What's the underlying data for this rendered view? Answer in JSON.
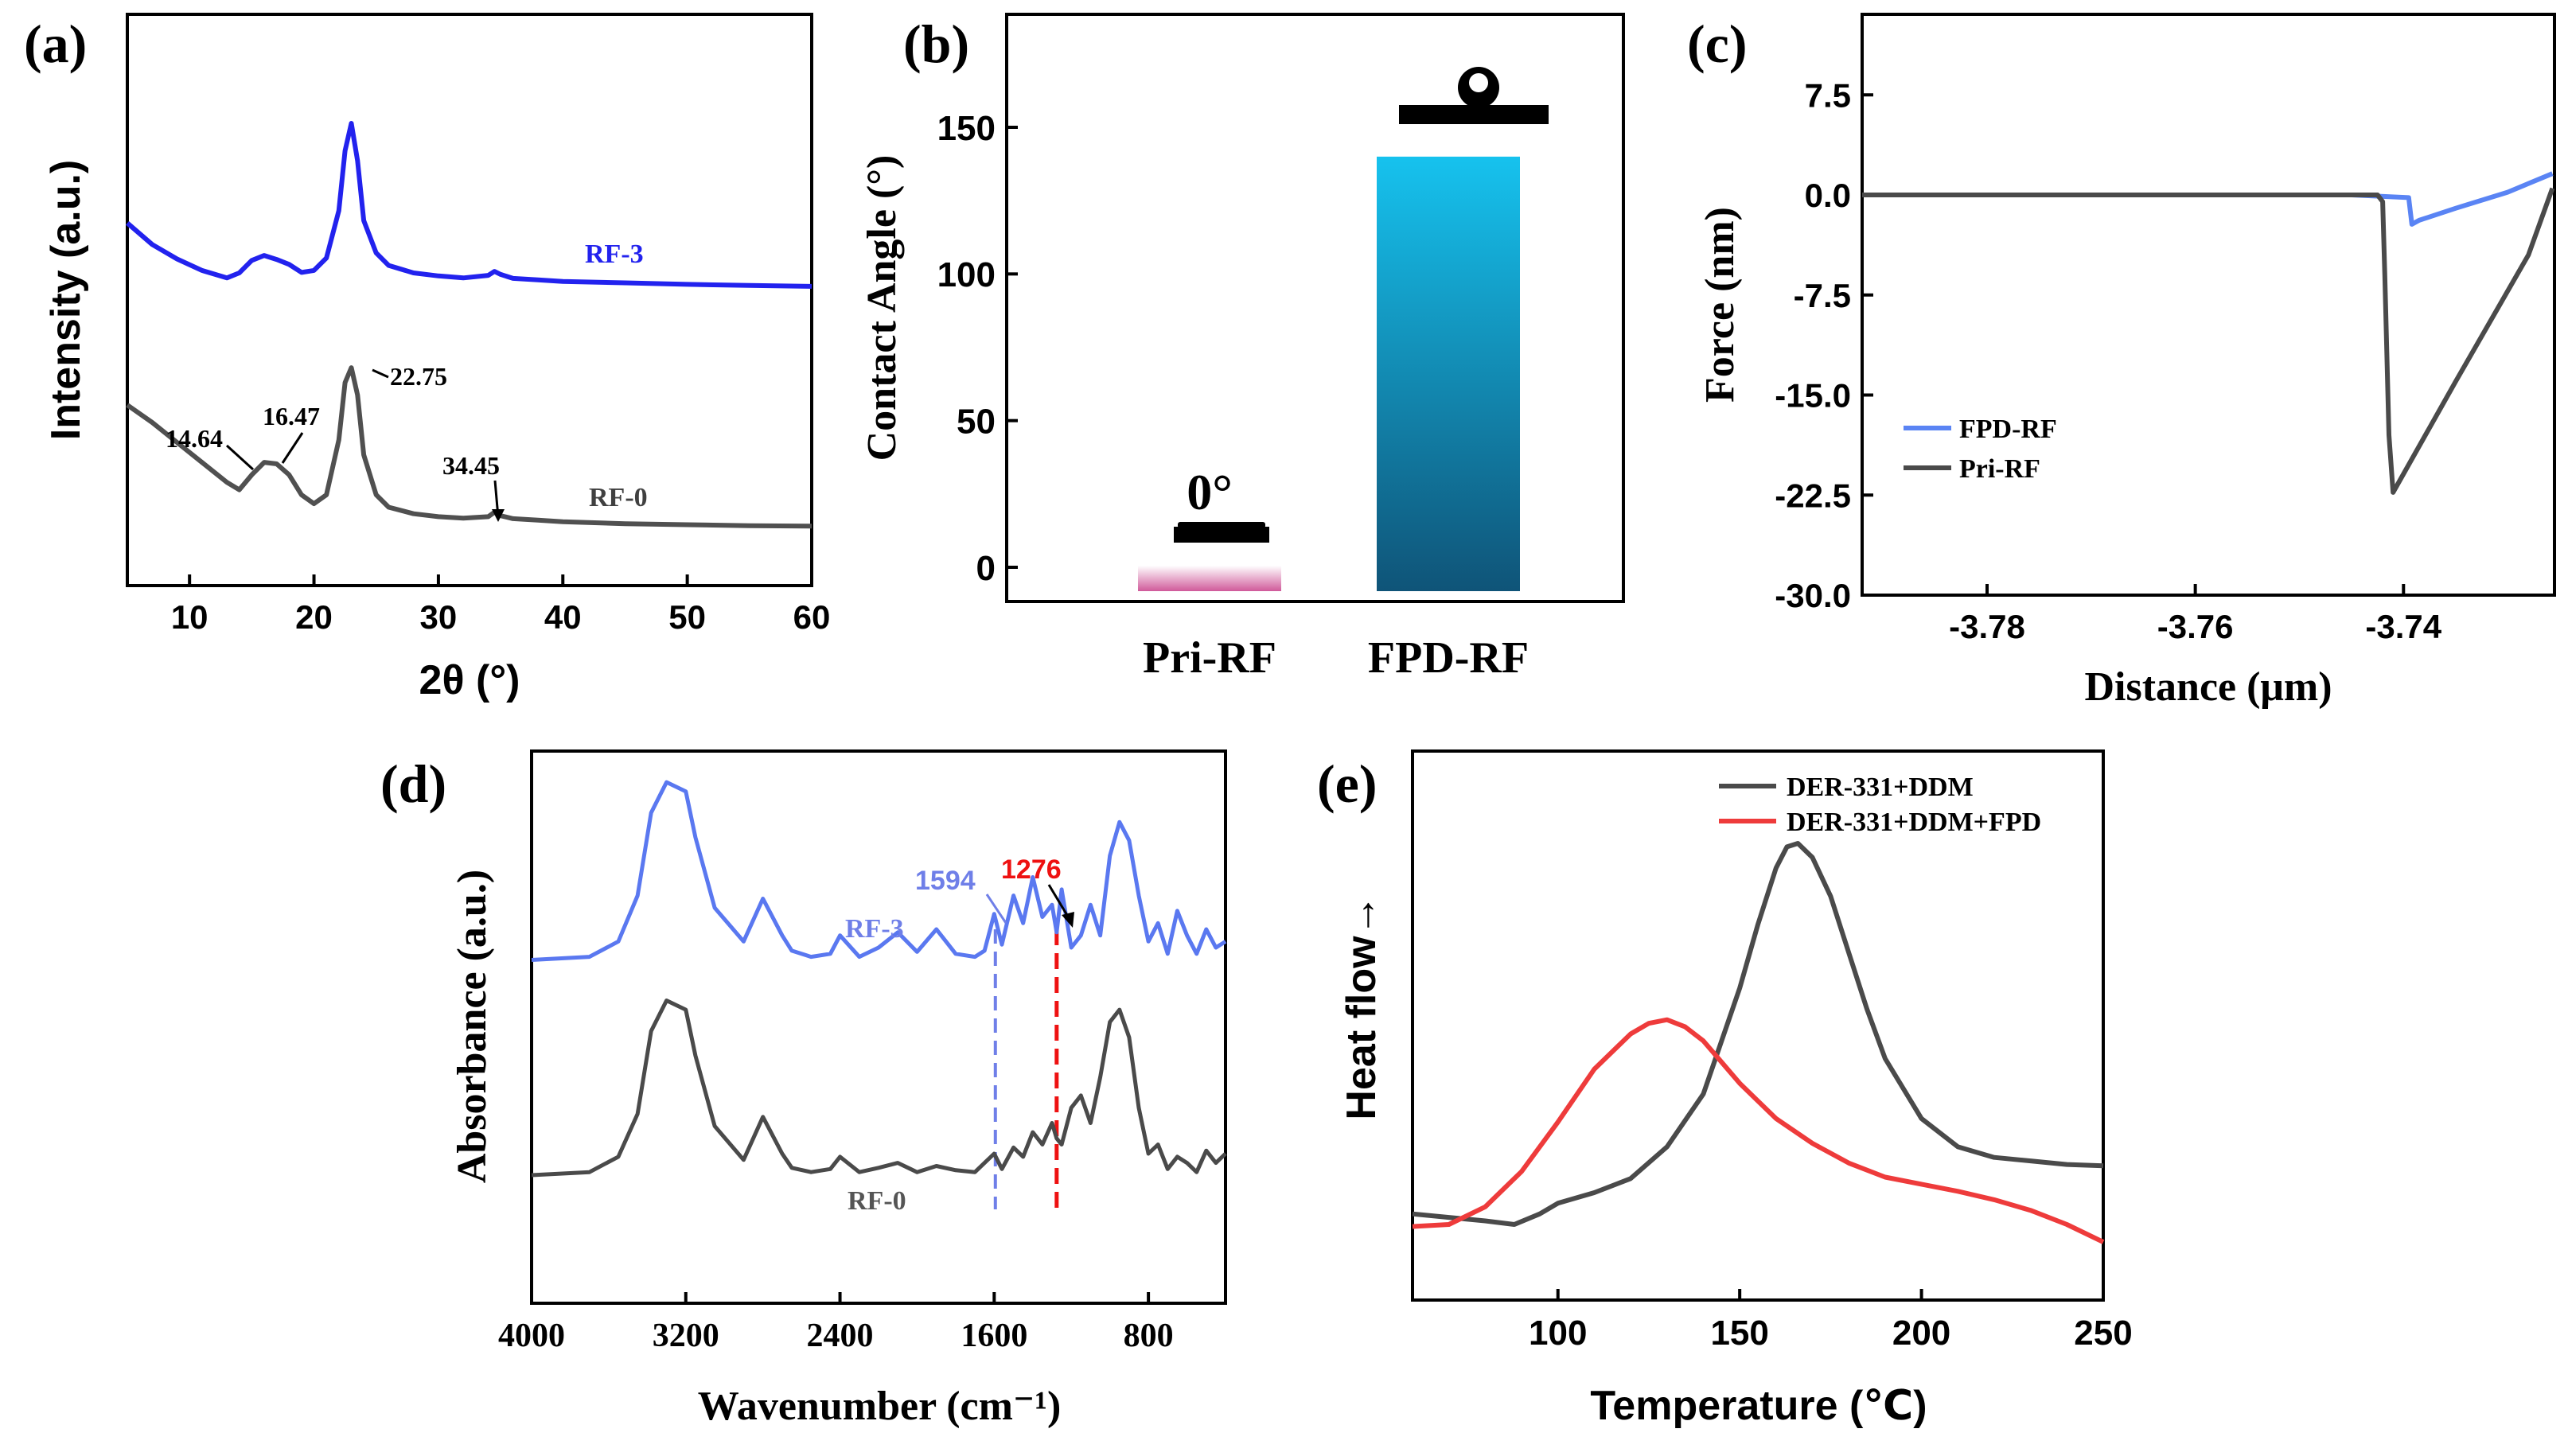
{
  "chart_data": [
    {
      "panel": "(a)",
      "type": "line",
      "xlabel": "2θ (°)",
      "ylabel": "Intensity (a.u.)",
      "xlim": [
        5,
        60
      ],
      "xticks": [
        10,
        20,
        30,
        40,
        50,
        60
      ],
      "series": [
        {
          "name": "RF-3",
          "color": "#2222ee",
          "x": [
            5,
            7,
            9,
            11,
            13,
            14,
            15,
            16,
            17,
            18,
            19,
            20,
            21,
            22,
            22.5,
            23,
            23.5,
            24,
            25,
            26,
            28,
            30,
            32,
            34,
            34.5,
            35,
            36,
            38,
            40,
            45,
            50,
            55,
            60
          ],
          "y": [
            6.25,
            5.82,
            5.53,
            5.3,
            5.15,
            5.25,
            5.5,
            5.6,
            5.52,
            5.42,
            5.26,
            5.3,
            5.55,
            6.5,
            7.7,
            8.25,
            7.5,
            6.3,
            5.65,
            5.4,
            5.25,
            5.19,
            5.15,
            5.2,
            5.28,
            5.22,
            5.14,
            5.11,
            5.08,
            5.05,
            5.02,
            5.0,
            4.98
          ]
        },
        {
          "name": "RF-0",
          "color": "#505050",
          "x": [
            5,
            7,
            9,
            11,
            13,
            14,
            15,
            16,
            17,
            18,
            19,
            20,
            21,
            22,
            22.5,
            23,
            23.5,
            24,
            25,
            26,
            28,
            30,
            32,
            34,
            34.5,
            35,
            36,
            38,
            40,
            45,
            50,
            55,
            60
          ],
          "y": [
            2.6,
            2.25,
            1.85,
            1.45,
            1.05,
            0.9,
            1.2,
            1.45,
            1.42,
            1.2,
            0.8,
            0.62,
            0.8,
            1.9,
            3.05,
            3.35,
            2.8,
            1.6,
            0.8,
            0.55,
            0.42,
            0.36,
            0.33,
            0.36,
            0.45,
            0.38,
            0.32,
            0.29,
            0.26,
            0.22,
            0.2,
            0.18,
            0.17
          ]
        }
      ],
      "annotations": [
        "14.64",
        "16.47",
        "22.75",
        "34.45"
      ]
    },
    {
      "panel": "(b)",
      "type": "bar",
      "ylabel": "Contact Angle (°)",
      "categories": [
        "Pri-RF",
        "FPD-RF"
      ],
      "values": [
        0,
        150
      ],
      "ylim": [
        -10,
        180
      ],
      "yticks": [
        0,
        50,
        100,
        150
      ],
      "value_label": "0°",
      "colors": [
        [
          "#ffffff",
          "#d05a9a"
        ],
        [
          "#16c2ee",
          "#0f5478"
        ]
      ]
    },
    {
      "panel": "(c)",
      "type": "line",
      "xlabel": "Distance (μm)",
      "ylabel": "Force (nm)",
      "xlim": [
        -3.792,
        -3.7255
      ],
      "ylim": [
        -30,
        12.5
      ],
      "xticks": [
        "-3.78",
        "-3.76",
        "-3.74"
      ],
      "yticks": [
        "7.5",
        "0.0",
        "-7.5",
        "-15.0",
        "-22.5",
        "-30.0"
      ],
      "legend": "middle-left",
      "series": [
        {
          "name": "FPD-RF",
          "color": "#5a84f4",
          "x": [
            -3.792,
            -3.745,
            -3.7395,
            -3.7392,
            -3.7385,
            -3.735,
            -3.73,
            -3.7257
          ],
          "y": [
            0,
            0,
            -0.2,
            -2.2,
            -1.9,
            -1.0,
            0.2,
            1.6
          ]
        },
        {
          "name": "Pri-RF",
          "color": "#4a4a4a",
          "x": [
            -3.792,
            -3.7425,
            -3.742,
            -3.7418,
            -3.7414,
            -3.741,
            -3.735,
            -3.728,
            -3.7257
          ],
          "y": [
            0,
            0,
            -0.5,
            -6,
            -18,
            -22.3,
            -14,
            -4.5,
            0.5
          ]
        }
      ]
    },
    {
      "panel": "(d)",
      "type": "line",
      "xlabel": "Wavenumber (cm⁻¹)",
      "ylabel": "Absorbance (a.u.)",
      "xlim": [
        4000,
        400
      ],
      "xticks": [
        4000,
        3200,
        2400,
        1600,
        800
      ],
      "series": [
        {
          "name": "RF-3",
          "color": "#5a78f0",
          "x": [
            4000,
            3700,
            3550,
            3450,
            3380,
            3300,
            3200,
            3150,
            3050,
            2900,
            2800,
            2700,
            2650,
            2550,
            2450,
            2400,
            2300,
            2200,
            2100,
            2000,
            1900,
            1800,
            1700,
            1650,
            1600,
            1560,
            1500,
            1450,
            1400,
            1350,
            1300,
            1276,
            1250,
            1200,
            1150,
            1100,
            1050,
            1000,
            950,
            900,
            850,
            800,
            750,
            700,
            650,
            600,
            550,
            500,
            450,
            400
          ],
          "y": [
            0.15,
            0.2,
            0.45,
            1.2,
            2.55,
            3.05,
            2.9,
            2.15,
            1.0,
            0.45,
            1.15,
            0.55,
            0.3,
            0.2,
            0.25,
            0.55,
            0.2,
            0.35,
            0.6,
            0.28,
            0.65,
            0.25,
            0.2,
            0.3,
            0.9,
            0.4,
            1.2,
            0.75,
            1.5,
            0.85,
            1.05,
            0.6,
            1.3,
            0.35,
            0.55,
            1.05,
            0.55,
            1.85,
            2.4,
            2.1,
            1.2,
            0.45,
            0.75,
            0.25,
            0.95,
            0.55,
            0.25,
            0.65,
            0.35,
            0.45
          ]
        },
        {
          "name": "RF-0",
          "color": "#4a4a4a",
          "x": [
            4000,
            3700,
            3550,
            3450,
            3380,
            3300,
            3200,
            3150,
            3050,
            2900,
            2800,
            2700,
            2650,
            2550,
            2450,
            2400,
            2300,
            2200,
            2100,
            2000,
            1900,
            1800,
            1700,
            1650,
            1600,
            1560,
            1500,
            1450,
            1400,
            1350,
            1300,
            1276,
            1250,
            1200,
            1150,
            1100,
            1050,
            1000,
            950,
            900,
            850,
            800,
            750,
            700,
            650,
            600,
            550,
            500,
            450,
            400
          ],
          "y": [
            0,
            0.05,
            0.3,
            1.0,
            2.35,
            2.85,
            2.7,
            1.95,
            0.8,
            0.25,
            0.95,
            0.35,
            0.12,
            0.05,
            0.1,
            0.3,
            0.05,
            0.12,
            0.2,
            0.05,
            0.15,
            0.08,
            0.05,
            0.2,
            0.35,
            0.1,
            0.45,
            0.3,
            0.7,
            0.5,
            0.85,
            0.6,
            0.5,
            1.1,
            1.3,
            0.85,
            1.6,
            2.5,
            2.7,
            2.25,
            1.1,
            0.35,
            0.5,
            0.1,
            0.3,
            0.2,
            0.05,
            0.4,
            0.2,
            0.35
          ]
        }
      ],
      "markers": [
        {
          "label": "1594",
          "x": 1594,
          "color": "#6f7fe8"
        },
        {
          "label": "1276",
          "x": 1276,
          "color": "#ee1111"
        }
      ]
    },
    {
      "panel": "(e)",
      "type": "line",
      "xlabel": "Temperature (℃)",
      "ylabel": "Heat flow→",
      "xlim": [
        60,
        250
      ],
      "xticks": [
        100,
        150,
        200,
        250
      ],
      "legend": "top-right",
      "series": [
        {
          "name": "DER-331+DDM",
          "color": "#4a4a4a",
          "x": [
            60,
            70,
            80,
            88,
            95,
            100,
            110,
            120,
            130,
            140,
            150,
            155,
            160,
            163,
            166,
            170,
            175,
            180,
            185,
            190,
            200,
            210,
            220,
            230,
            240,
            250
          ],
          "y": [
            0.5,
            0.45,
            0.4,
            0.35,
            0.5,
            0.65,
            0.8,
            1.0,
            1.45,
            2.2,
            3.7,
            4.6,
            5.4,
            5.7,
            5.75,
            5.55,
            5.0,
            4.2,
            3.4,
            2.7,
            1.85,
            1.45,
            1.3,
            1.25,
            1.2,
            1.18
          ]
        },
        {
          "name": "DER-331+DDM+FPD",
          "color": "#ee3b3b",
          "x": [
            60,
            70,
            80,
            90,
            100,
            110,
            120,
            125,
            130,
            135,
            140,
            150,
            160,
            170,
            180,
            190,
            200,
            210,
            220,
            230,
            240,
            250
          ],
          "y": [
            0.32,
            0.35,
            0.6,
            1.1,
            1.8,
            2.55,
            3.05,
            3.2,
            3.25,
            3.15,
            2.95,
            2.35,
            1.85,
            1.5,
            1.22,
            1.02,
            0.92,
            0.82,
            0.7,
            0.55,
            0.35,
            0.1
          ]
        }
      ]
    }
  ]
}
